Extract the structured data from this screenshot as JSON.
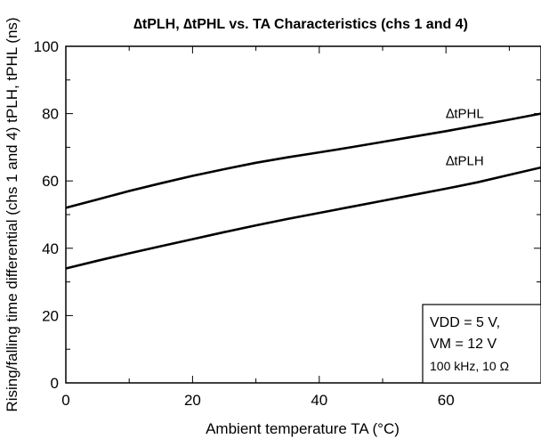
{
  "chart_data": {
    "type": "line",
    "title": "∆tPLH, ∆tPHL vs. TA Characteristics (chs 1 and 4)",
    "xlabel": "Ambient temperature TA (°C)",
    "ylabel": "Rising/falling time differential (chs 1 and 4) tPLH, tPHL (ns)",
    "xlim": [
      0,
      75
    ],
    "ylim": [
      0,
      100
    ],
    "x_ticks": [
      0,
      20,
      40,
      60
    ],
    "y_ticks": [
      0,
      20,
      40,
      60,
      80,
      100
    ],
    "x_tick_labels": [
      "0",
      "20",
      "40",
      "60"
    ],
    "y_tick_labels": [
      "0",
      "20",
      "40",
      "60",
      "80",
      "100"
    ],
    "grid": false,
    "series": [
      {
        "name": "∆tPHL",
        "x": [
          0,
          5,
          10,
          15,
          20,
          25,
          30,
          35,
          40,
          45,
          50,
          55,
          60,
          65,
          70,
          75
        ],
        "y": [
          52,
          54.5,
          57,
          59.3,
          61.5,
          63.5,
          65.4,
          67,
          68.5,
          70,
          71.6,
          73.2,
          74.8,
          76.5,
          78.2,
          80
        ]
      },
      {
        "name": "∆tPLH",
        "x": [
          0,
          5,
          10,
          15,
          20,
          25,
          30,
          35,
          40,
          45,
          50,
          55,
          60,
          65,
          70,
          75
        ],
        "y": [
          34,
          36.3,
          38.5,
          40.6,
          42.7,
          44.8,
          46.8,
          48.7,
          50.5,
          52.3,
          54.1,
          55.9,
          57.7,
          59.6,
          61.8,
          64
        ]
      }
    ],
    "conditions": [
      "VDD = 5 V,",
      "VM = 12 V",
      "100 kHz, 10 Ω"
    ]
  }
}
